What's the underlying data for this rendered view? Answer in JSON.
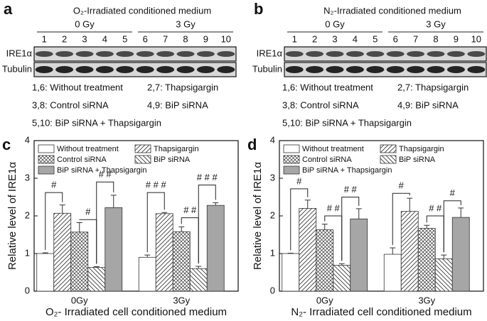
{
  "blots": [
    {
      "label": "a",
      "title": "O₂-Irradiated conditioned medium",
      "groups": [
        "0 Gy",
        "3 Gy"
      ],
      "lanes": [
        "1",
        "2",
        "3",
        "4",
        "5",
        "6",
        "7",
        "8",
        "9",
        "10"
      ],
      "rows": [
        "IRE1α",
        "Tubulin"
      ],
      "legend": [
        "1,6: Without treatment",
        "2,7: Thapsigargin",
        "3,8: Control siRNA",
        "4,9: BiP siRNA",
        "5,10: BiP siRNA + Thapsigargin"
      ]
    },
    {
      "label": "b",
      "title": "N₂-Irradiated conditioned medium",
      "groups": [
        "0 Gy",
        "3 Gy"
      ],
      "lanes": [
        "1",
        "2",
        "3",
        "4",
        "5",
        "6",
        "7",
        "8",
        "9",
        "10"
      ],
      "rows": [
        "IRE1α",
        "Tubulin"
      ],
      "legend": [
        "1,6: Without treatment",
        "2,7: Thapsigargin",
        "3,8: Control siRNA",
        "4,9: BiP siRNA",
        "5,10: BiP siRNA + Thapsigargin"
      ]
    }
  ],
  "chart_data": [
    {
      "type": "bar",
      "label": "c",
      "xlabel": "O₂- Irradiated cell conditioned medium",
      "ylabel": "Relative level of IRE1α",
      "categories": [
        "0Gy",
        "3Gy"
      ],
      "ylim": [
        0,
        4
      ],
      "yticks": [
        0,
        1,
        2,
        3,
        4
      ],
      "series": [
        {
          "name": "Without treatment",
          "color": "#ffffff",
          "pattern": "none",
          "values": [
            1.0,
            0.9
          ],
          "errors": [
            0.02,
            0.06
          ]
        },
        {
          "name": "Thapsigargin",
          "color": "#ffffff",
          "pattern": "hatch",
          "values": [
            2.07,
            2.06
          ],
          "errors": [
            0.22,
            0.03
          ]
        },
        {
          "name": "Control siRNA",
          "color": "#ffffff",
          "pattern": "cross",
          "values": [
            1.57,
            1.58
          ],
          "errors": [
            0.25,
            0.13
          ]
        },
        {
          "name": "BiP siRNA",
          "color": "#ffffff",
          "pattern": "back",
          "values": [
            0.63,
            0.6
          ],
          "errors": [
            0.02,
            0.06
          ]
        },
        {
          "name": "BiP siRNA + Thapsigargin",
          "color": "#a6a6a6",
          "pattern": "none",
          "values": [
            2.22,
            2.28
          ],
          "errors": [
            0.33,
            0.07
          ]
        }
      ],
      "annotations": [
        "#",
        "#",
        "# #",
        "# # #",
        "# #",
        "# # #"
      ]
    },
    {
      "type": "bar",
      "label": "d",
      "xlabel": "N₂- Irradiated cell conditioned medium",
      "ylabel": "Relative level of IRE1α",
      "categories": [
        "0Gy",
        "3Gy"
      ],
      "ylim": [
        0,
        4
      ],
      "yticks": [
        0,
        1,
        2,
        3,
        4
      ],
      "series": [
        {
          "name": "Without treatment",
          "color": "#ffffff",
          "pattern": "none",
          "values": [
            1.0,
            0.98
          ],
          "errors": [
            0.01,
            0.17
          ]
        },
        {
          "name": "Thapsigargin",
          "color": "#ffffff",
          "pattern": "hatch",
          "values": [
            2.2,
            2.12
          ],
          "errors": [
            0.22,
            0.35
          ]
        },
        {
          "name": "Control siRNA",
          "color": "#ffffff",
          "pattern": "cross",
          "values": [
            1.63,
            1.67
          ],
          "errors": [
            0.15,
            0.08
          ]
        },
        {
          "name": "BiP siRNA",
          "color": "#ffffff",
          "pattern": "back",
          "values": [
            0.69,
            0.86
          ],
          "errors": [
            0.04,
            0.1
          ]
        },
        {
          "name": "BiP siRNA + Thapsigargin",
          "color": "#a6a6a6",
          "pattern": "none",
          "values": [
            1.92,
            1.96
          ],
          "errors": [
            0.27,
            0.25
          ]
        }
      ],
      "annotations": [
        "#",
        "# #",
        "# #",
        "#",
        "# #",
        "#"
      ]
    }
  ]
}
